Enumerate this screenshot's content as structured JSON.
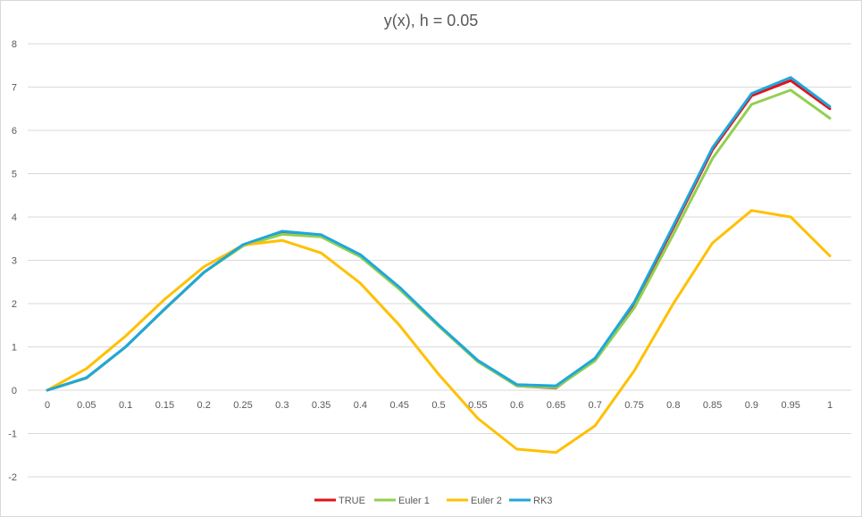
{
  "chart_data": {
    "type": "line",
    "title": "y(x), h = 0.05",
    "xlabel": "",
    "ylabel": "",
    "x": [
      "0",
      "0.05",
      "0.1",
      "0.15",
      "0.2",
      "0.25",
      "0.3",
      "0.35",
      "0.4",
      "0.45",
      "0.5",
      "0.55",
      "0.6",
      "0.65",
      "0.7",
      "0.75",
      "0.8",
      "0.85",
      "0.9",
      "0.95",
      "1"
    ],
    "ylim": [
      -2,
      8
    ],
    "yticks": [
      "-2",
      "-1",
      "0",
      "1",
      "2",
      "3",
      "4",
      "5",
      "6",
      "7",
      "8"
    ],
    "grid": true,
    "legend_position": "bottom",
    "series": [
      {
        "name": "TRUE",
        "color": "#e3101a",
        "values": [
          0,
          0.28,
          1.0,
          1.87,
          2.72,
          3.35,
          3.66,
          3.58,
          3.12,
          2.37,
          1.5,
          0.67,
          0.1,
          0.05,
          0.72,
          2.0,
          3.75,
          5.55,
          6.8,
          7.15,
          6.5
        ]
      },
      {
        "name": "Euler 1",
        "color": "#92d050",
        "values": [
          0,
          0.28,
          1.0,
          1.87,
          2.72,
          3.33,
          3.6,
          3.54,
          3.08,
          2.33,
          1.48,
          0.66,
          0.1,
          0.06,
          0.68,
          1.9,
          3.6,
          5.35,
          6.6,
          6.93,
          6.28
        ]
      },
      {
        "name": "Euler 2",
        "color": "#ffc000",
        "values": [
          0,
          0.5,
          1.25,
          2.1,
          2.85,
          3.35,
          3.46,
          3.17,
          2.47,
          1.5,
          0.37,
          -0.65,
          -1.36,
          -1.44,
          -0.82,
          0.45,
          2.0,
          3.4,
          4.15,
          4.0,
          3.1
        ]
      },
      {
        "name": "RK3",
        "color": "#1ea7db",
        "values": [
          0,
          0.29,
          1.0,
          1.88,
          2.72,
          3.36,
          3.67,
          3.59,
          3.13,
          2.38,
          1.51,
          0.69,
          0.13,
          0.1,
          0.74,
          2.03,
          3.8,
          5.6,
          6.85,
          7.22,
          6.55
        ]
      }
    ]
  }
}
